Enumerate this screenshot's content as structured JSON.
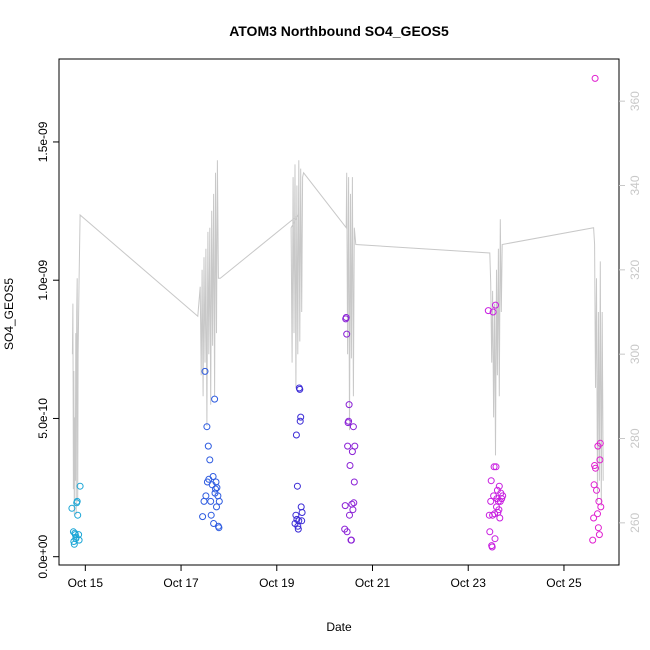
{
  "chart_data": {
    "type": "scatter",
    "title": "ATOM3 Northbound SO4_GEOS5",
    "xlabel": "Date",
    "ylabel": "SO4_GEOS5",
    "x_ticks": [
      "Oct 15",
      "Oct 17",
      "Oct 19",
      "Oct 21",
      "Oct 23",
      "Oct 25"
    ],
    "x_tick_days": [
      15,
      17,
      19,
      21,
      23,
      25
    ],
    "xlim": [
      14.45,
      26.15
    ],
    "ylim": [
      -3e-11,
      1.8e-09
    ],
    "y_ticks": [
      0,
      5e-10,
      1e-09,
      1.5e-09
    ],
    "y_tick_labels": [
      "0.0e+00",
      "5.0e-10",
      "1.0e-09",
      "1.5e-09"
    ],
    "y2lim": [
      250,
      370
    ],
    "y2_ticks": [
      260,
      280,
      300,
      320,
      340,
      360
    ],
    "y2_tick_labels": [
      "260",
      "280",
      "300",
      "320",
      "340",
      "360"
    ],
    "y2_color": "#c8c8c8",
    "line_color": "#c8c8c8",
    "series": [
      {
        "color": "#1ba6d6",
        "points": [
          [
            14.72,
            1.75e-10
          ],
          [
            14.75,
            9e-11
          ],
          [
            14.76,
            5.5e-11
          ],
          [
            14.77,
            4.5e-11
          ],
          [
            14.78,
            8.5e-11
          ],
          [
            14.79,
            8e-11
          ],
          [
            14.8,
            6.5e-11
          ],
          [
            14.81,
            7e-11
          ],
          [
            14.82,
            1.95e-10
          ],
          [
            14.83,
            2e-10
          ],
          [
            14.84,
            1.5e-10
          ],
          [
            14.86,
            8e-11
          ],
          [
            14.87,
            6e-11
          ],
          [
            14.89,
            2.55e-10
          ]
        ]
      },
      {
        "color": "#2d5be0",
        "points": [
          [
            17.45,
            1.45e-10
          ],
          [
            17.48,
            2e-10
          ],
          [
            17.5,
            6.7e-10
          ],
          [
            17.52,
            2.2e-10
          ],
          [
            17.54,
            4.7e-10
          ],
          [
            17.55,
            2.7e-10
          ],
          [
            17.57,
            4e-10
          ],
          [
            17.58,
            2.8e-10
          ],
          [
            17.6,
            3.5e-10
          ],
          [
            17.62,
            2e-10
          ],
          [
            17.63,
            1.5e-10
          ],
          [
            17.65,
            2.6e-10
          ],
          [
            17.67,
            2.9e-10
          ],
          [
            17.68,
            1.2e-10
          ],
          [
            17.7,
            5.7e-10
          ],
          [
            17.71,
            2.3e-10
          ],
          [
            17.72,
            2.45e-10
          ],
          [
            17.73,
            2.7e-10
          ],
          [
            17.74,
            1.8e-10
          ],
          [
            17.75,
            2.5e-10
          ],
          [
            17.77,
            2.2e-10
          ],
          [
            17.78,
            1.1e-10
          ],
          [
            17.79,
            1.05e-10
          ],
          [
            17.8,
            2e-10
          ]
        ]
      },
      {
        "color": "#3a2ad6",
        "points": [
          [
            19.38,
            1.2e-10
          ],
          [
            19.4,
            1.5e-10
          ],
          [
            19.41,
            4.4e-10
          ],
          [
            19.42,
            1.35e-10
          ],
          [
            19.43,
            2.55e-10
          ],
          [
            19.44,
            1.1e-10
          ],
          [
            19.45,
            1e-10
          ],
          [
            19.46,
            1.3e-10
          ],
          [
            19.47,
            6.1e-10
          ],
          [
            19.48,
            6.05e-10
          ],
          [
            19.49,
            4.9e-10
          ],
          [
            19.5,
            5.05e-10
          ],
          [
            19.51,
            1.8e-10
          ],
          [
            19.52,
            1.3e-10
          ],
          [
            19.53,
            1.6e-10
          ]
        ]
      },
      {
        "color": "#8a20d6",
        "points": [
          [
            20.42,
            1e-10
          ],
          [
            20.43,
            1.85e-10
          ],
          [
            20.44,
            8.6e-10
          ],
          [
            20.45,
            8.65e-10
          ],
          [
            20.46,
            8.05e-10
          ],
          [
            20.47,
            9e-11
          ],
          [
            20.48,
            4e-10
          ],
          [
            20.49,
            4.85e-10
          ],
          [
            20.5,
            4.9e-10
          ],
          [
            20.51,
            5.5e-10
          ],
          [
            20.52,
            1.5e-10
          ],
          [
            20.53,
            3.3e-10
          ],
          [
            20.55,
            6e-11
          ],
          [
            20.56,
            6e-11
          ],
          [
            20.57,
            1.9e-10
          ],
          [
            20.58,
            3.8e-10
          ],
          [
            20.59,
            1.7e-10
          ],
          [
            20.6,
            4.7e-10
          ],
          [
            20.61,
            1.95e-10
          ],
          [
            20.62,
            2.7e-10
          ],
          [
            20.63,
            4e-10
          ]
        ]
      },
      {
        "color": "#c81ee0",
        "points": [
          [
            23.42,
            8.9e-10
          ],
          [
            23.44,
            1.5e-10
          ],
          [
            23.45,
            9e-11
          ],
          [
            23.47,
            2e-10
          ],
          [
            23.48,
            2.75e-10
          ],
          [
            23.49,
            4e-11
          ],
          [
            23.5,
            3.5e-11
          ],
          [
            23.51,
            1.5e-10
          ],
          [
            23.52,
            8.85e-10
          ],
          [
            23.53,
            2.2e-10
          ],
          [
            23.54,
            3.25e-10
          ],
          [
            23.55,
            1.55e-10
          ],
          [
            23.56,
            6.5e-11
          ],
          [
            23.57,
            9.1e-10
          ],
          [
            23.58,
            3.25e-10
          ],
          [
            23.59,
            1.8e-10
          ],
          [
            23.6,
            2.1e-10
          ],
          [
            23.61,
            2.4e-10
          ],
          [
            23.62,
            1.6e-10
          ],
          [
            23.63,
            2e-10
          ],
          [
            23.64,
            1.7e-10
          ],
          [
            23.65,
            2.55e-10
          ],
          [
            23.66,
            1.4e-10
          ],
          [
            23.67,
            2e-10
          ],
          [
            23.68,
            2.3e-10
          ],
          [
            23.7,
            2.1e-10
          ],
          [
            23.72,
            2.2e-10
          ]
        ]
      },
      {
        "color": "#e020d0",
        "points": [
          [
            25.6,
            6e-11
          ],
          [
            25.62,
            1.4e-10
          ],
          [
            25.63,
            2.6e-10
          ],
          [
            25.64,
            3.3e-10
          ],
          [
            25.65,
            1.73e-09
          ],
          [
            25.66,
            3.2e-10
          ],
          [
            25.68,
            2.4e-10
          ],
          [
            25.7,
            1.55e-10
          ],
          [
            25.71,
            4e-10
          ],
          [
            25.72,
            1.05e-10
          ],
          [
            25.73,
            2e-10
          ],
          [
            25.74,
            8e-11
          ],
          [
            25.75,
            3.5e-10
          ],
          [
            25.76,
            4.1e-10
          ],
          [
            25.77,
            1.8e-10
          ]
        ]
      }
    ],
    "line": [
      [
        14.73,
        300
      ],
      [
        14.74,
        312
      ],
      [
        14.75,
        268
      ],
      [
        14.76,
        296
      ],
      [
        14.77,
        262
      ],
      [
        14.78,
        285
      ],
      [
        14.79,
        270
      ],
      [
        14.8,
        305
      ],
      [
        14.81,
        262
      ],
      [
        14.82,
        310
      ],
      [
        14.83,
        318
      ],
      [
        14.84,
        265
      ],
      [
        14.85,
        300
      ],
      [
        14.87,
        318
      ],
      [
        14.89,
        333
      ],
      [
        17.35,
        309
      ],
      [
        17.4,
        316
      ],
      [
        17.42,
        295
      ],
      [
        17.44,
        320
      ],
      [
        17.46,
        290
      ],
      [
        17.48,
        323
      ],
      [
        17.5,
        298
      ],
      [
        17.52,
        325
      ],
      [
        17.54,
        283
      ],
      [
        17.56,
        329
      ],
      [
        17.58,
        300
      ],
      [
        17.6,
        330
      ],
      [
        17.62,
        288
      ],
      [
        17.64,
        334
      ],
      [
        17.66,
        302
      ],
      [
        17.68,
        338
      ],
      [
        17.7,
        290
      ],
      [
        17.72,
        343
      ],
      [
        17.74,
        305
      ],
      [
        17.76,
        346
      ],
      [
        17.78,
        318
      ],
      [
        17.82,
        318
      ],
      [
        19.45,
        333
      ],
      [
        19.3,
        330
      ],
      [
        19.32,
        298
      ],
      [
        19.34,
        342
      ],
      [
        19.36,
        305
      ],
      [
        19.38,
        345
      ],
      [
        19.4,
        292
      ],
      [
        19.42,
        340
      ],
      [
        19.44,
        300
      ],
      [
        19.46,
        346
      ],
      [
        19.48,
        303
      ],
      [
        19.5,
        344
      ],
      [
        19.52,
        310
      ],
      [
        19.54,
        342
      ],
      [
        19.56,
        343
      ],
      [
        20.45,
        330
      ],
      [
        20.46,
        343
      ],
      [
        20.48,
        300
      ],
      [
        20.5,
        342
      ],
      [
        20.52,
        282
      ],
      [
        20.54,
        338
      ],
      [
        20.56,
        299
      ],
      [
        20.58,
        342
      ],
      [
        20.6,
        290
      ],
      [
        20.62,
        330
      ],
      [
        20.65,
        326
      ],
      [
        23.45,
        324
      ],
      [
        23.47,
        317
      ],
      [
        23.49,
        298
      ],
      [
        23.51,
        315
      ],
      [
        23.53,
        285
      ],
      [
        23.55,
        312
      ],
      [
        23.57,
        276
      ],
      [
        23.59,
        320
      ],
      [
        23.61,
        295
      ],
      [
        23.63,
        325
      ],
      [
        23.65,
        290
      ],
      [
        23.67,
        332
      ],
      [
        23.69,
        310
      ],
      [
        23.71,
        326
      ],
      [
        25.62,
        330
      ],
      [
        25.64,
        326
      ],
      [
        25.66,
        292
      ],
      [
        25.68,
        318
      ],
      [
        25.7,
        265
      ],
      [
        25.72,
        310
      ],
      [
        25.74,
        270
      ],
      [
        25.76,
        322
      ],
      [
        25.78,
        264
      ],
      [
        25.8,
        310
      ],
      [
        25.82,
        270
      ]
    ]
  }
}
